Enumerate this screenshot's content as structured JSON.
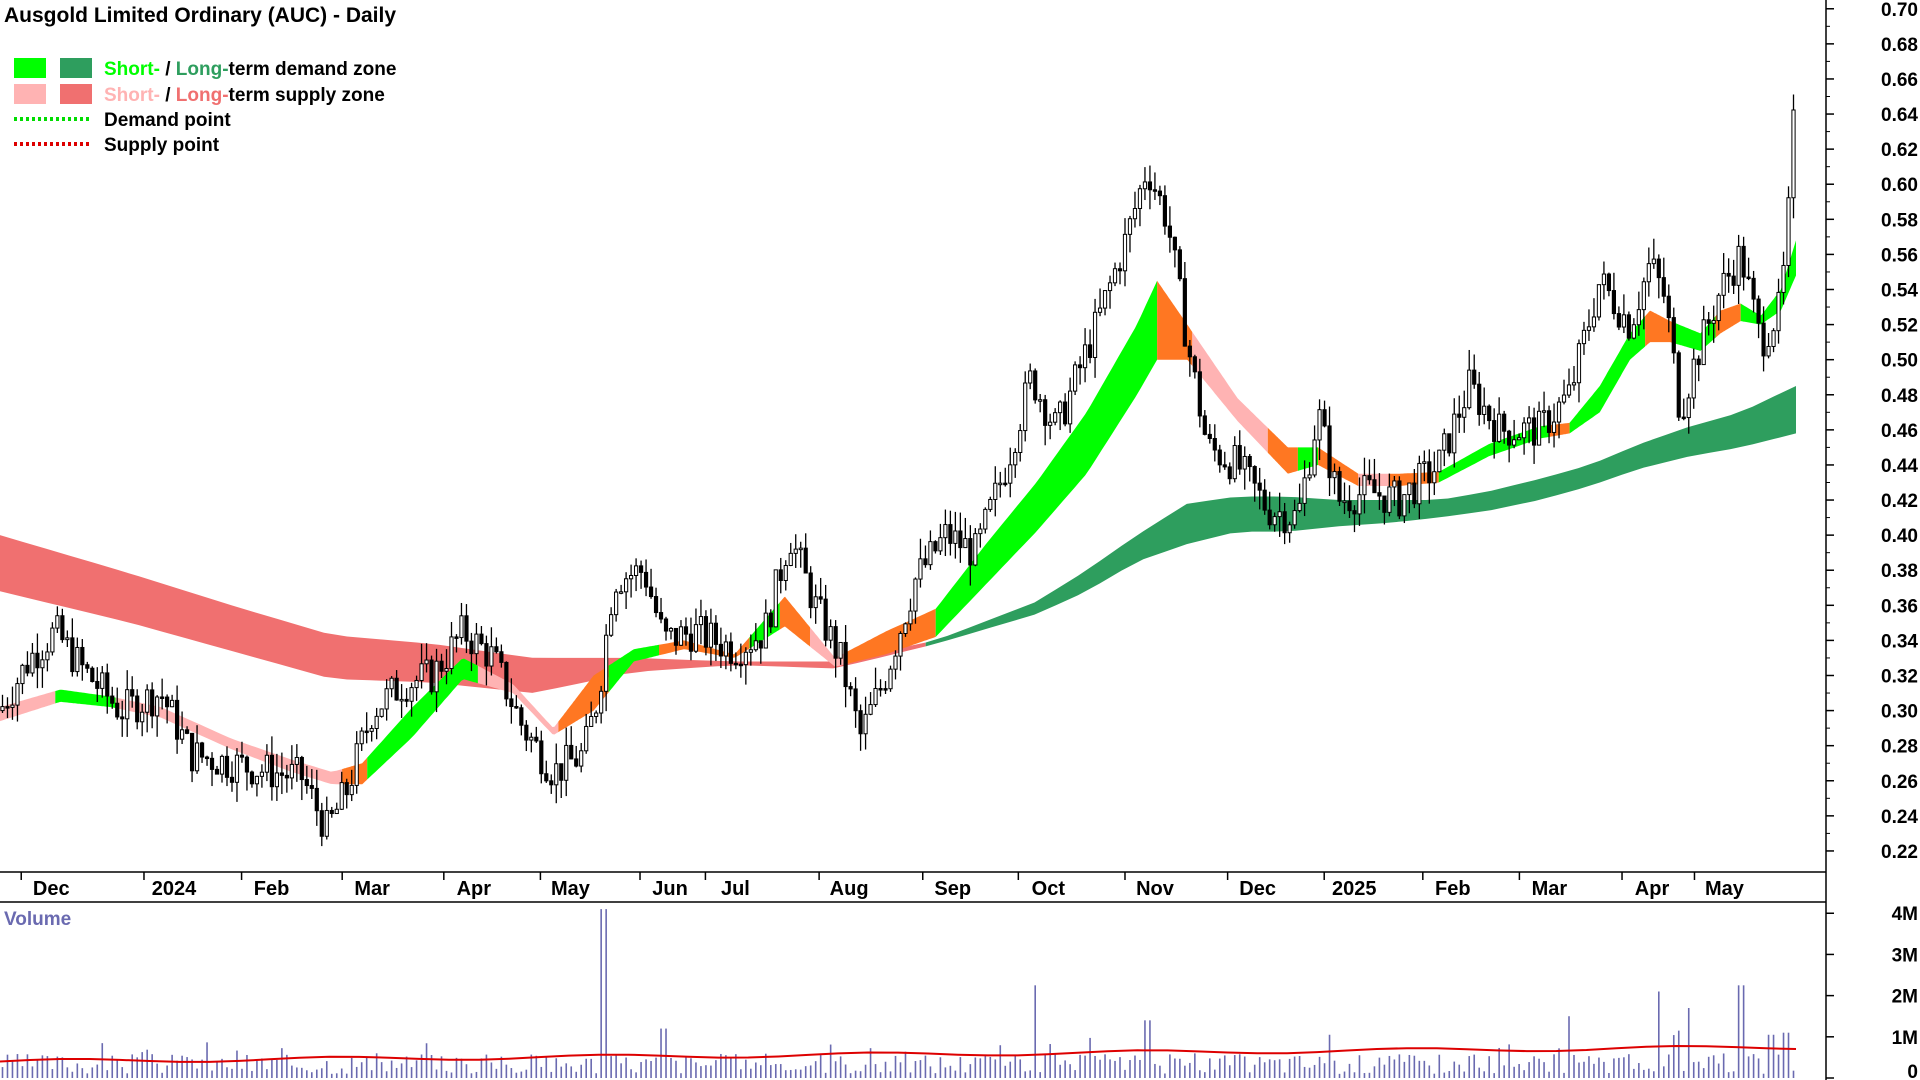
{
  "chart_data": {
    "type": "candlestick",
    "title": "Ausgold Limited Ordinary (AUC) - Daily",
    "y_ticks": [
      "0.70",
      "0.68",
      "0.66",
      "0.64",
      "0.62",
      "0.60",
      "0.58",
      "0.56",
      "0.54",
      "0.52",
      "0.50",
      "0.48",
      "0.46",
      "0.44",
      "0.42",
      "0.40",
      "0.38",
      "0.36",
      "0.34",
      "0.32",
      "0.30",
      "0.28",
      "0.26",
      "0.24",
      "0.22"
    ],
    "ylim": [
      0.208,
      0.705
    ],
    "month_labels": [
      "Dec",
      "2024",
      "Feb",
      "Mar",
      "Apr",
      "May",
      "Jun",
      "Jul",
      "Aug",
      "Sep",
      "Oct",
      "Nov",
      "Dec",
      "2025",
      "Feb",
      "Mar",
      "Apr",
      "May"
    ],
    "month_values": [
      0.07,
      1.29,
      2.26,
      3.26,
      4.27,
      5.23,
      6.22,
      6.87,
      8.0,
      9.03,
      9.98,
      11.04,
      12.06,
      13.02,
      14.0,
      14.96,
      15.98,
      16.7
    ],
    "x_range": [
      -0.3,
      17.55
    ],
    "legend": [
      {
        "short": "Short-",
        "sep": " / ",
        "long": "Long-",
        "rest": "term demand zone",
        "short_color": "#00ff00",
        "long_color": "#2e9e5e"
      },
      {
        "short": "Short-",
        "sep": " / ",
        "long": "Long-",
        "rest": "term supply zone",
        "short_color": "#ffb3b3",
        "long_color": "#f07070"
      },
      {
        "label": "Demand point",
        "color": "#00dd00"
      },
      {
        "label": "Supply point",
        "color": "#dd0000"
      }
    ],
    "price_path": [
      [
        -0.3,
        0.3
      ],
      [
        0.0,
        0.33
      ],
      [
        0.25,
        0.345
      ],
      [
        0.5,
        0.325
      ],
      [
        0.9,
        0.3
      ],
      [
        1.3,
        0.31
      ],
      [
        1.6,
        0.275
      ],
      [
        2.0,
        0.27
      ],
      [
        2.4,
        0.265
      ],
      [
        2.7,
        0.262
      ],
      [
        2.95,
        0.232
      ],
      [
        3.15,
        0.255
      ],
      [
        3.4,
        0.3
      ],
      [
        3.7,
        0.315
      ],
      [
        4.0,
        0.32
      ],
      [
        4.3,
        0.345
      ],
      [
        4.6,
        0.33
      ],
      [
        4.9,
        0.29
      ],
      [
        5.2,
        0.265
      ],
      [
        5.5,
        0.275
      ],
      [
        5.65,
        0.31
      ],
      [
        5.8,
        0.375
      ],
      [
        6.1,
        0.38
      ],
      [
        6.3,
        0.34
      ],
      [
        6.6,
        0.345
      ],
      [
        7.0,
        0.335
      ],
      [
        7.3,
        0.345
      ],
      [
        7.55,
        0.4
      ],
      [
        7.8,
        0.36
      ],
      [
        8.05,
        0.33
      ],
      [
        8.25,
        0.285
      ],
      [
        8.5,
        0.32
      ],
      [
        8.8,
        0.375
      ],
      [
        9.1,
        0.4
      ],
      [
        9.4,
        0.39
      ],
      [
        9.7,
        0.44
      ],
      [
        9.95,
        0.49
      ],
      [
        10.2,
        0.46
      ],
      [
        10.6,
        0.52
      ],
      [
        10.9,
        0.57
      ],
      [
        11.1,
        0.61
      ],
      [
        11.3,
        0.58
      ],
      [
        11.5,
        0.51
      ],
      [
        11.7,
        0.45
      ],
      [
        12.0,
        0.44
      ],
      [
        12.3,
        0.415
      ],
      [
        12.6,
        0.41
      ],
      [
        12.8,
        0.47
      ],
      [
        13.0,
        0.42
      ],
      [
        13.3,
        0.425
      ],
      [
        13.6,
        0.42
      ],
      [
        14.0,
        0.44
      ],
      [
        14.3,
        0.485
      ],
      [
        14.6,
        0.46
      ],
      [
        15.0,
        0.46
      ],
      [
        15.3,
        0.48
      ],
      [
        15.6,
        0.545
      ],
      [
        15.9,
        0.52
      ],
      [
        16.1,
        0.555
      ],
      [
        16.25,
        0.535
      ],
      [
        16.4,
        0.47
      ],
      [
        16.55,
        0.5
      ],
      [
        16.8,
        0.54
      ],
      [
        17.0,
        0.56
      ],
      [
        17.2,
        0.51
      ],
      [
        17.4,
        0.53
      ],
      [
        17.5,
        0.6
      ],
      [
        17.55,
        0.665
      ]
    ],
    "long_zone": {
      "x": [
        -0.3,
        1.0,
        2.0,
        3.0,
        4.0,
        5.0,
        6.0,
        7.0,
        8.0,
        9.0,
        10.0,
        10.5,
        11.0,
        11.5,
        12.0,
        12.5,
        13.0,
        13.5,
        14.0,
        14.5,
        15.0,
        15.5,
        16.0,
        16.5,
        17.0,
        17.55
      ],
      "upper": [
        0.4,
        0.378,
        0.36,
        0.343,
        0.338,
        0.33,
        0.33,
        0.328,
        0.328,
        0.34,
        0.362,
        0.38,
        0.4,
        0.418,
        0.422,
        0.422,
        0.42,
        0.42,
        0.42,
        0.425,
        0.432,
        0.44,
        0.452,
        0.462,
        0.47,
        0.485
      ],
      "lower": [
        0.368,
        0.35,
        0.334,
        0.318,
        0.316,
        0.31,
        0.322,
        0.326,
        0.324,
        0.338,
        0.355,
        0.368,
        0.385,
        0.395,
        0.402,
        0.402,
        0.405,
        0.407,
        0.41,
        0.414,
        0.42,
        0.428,
        0.438,
        0.445,
        0.45,
        0.458
      ]
    },
    "short_zone": {
      "x": [
        -0.3,
        0.3,
        0.8,
        1.3,
        2.0,
        2.6,
        3.0,
        3.3,
        3.8,
        4.3,
        4.8,
        5.2,
        5.6,
        6.0,
        6.5,
        7.0,
        7.5,
        8.0,
        8.5,
        9.0,
        9.5,
        10.0,
        10.5,
        11.0,
        11.2,
        11.5,
        12.0,
        12.5,
        12.8,
        13.2,
        13.6,
        14.0,
        14.5,
        15.0,
        15.3,
        15.6,
        15.9,
        16.1,
        16.3,
        16.6,
        16.8,
        17.0,
        17.2,
        17.4,
        17.55
      ],
      "upper": [
        0.302,
        0.312,
        0.308,
        0.302,
        0.284,
        0.272,
        0.265,
        0.27,
        0.302,
        0.33,
        0.315,
        0.29,
        0.32,
        0.335,
        0.34,
        0.332,
        0.365,
        0.33,
        0.345,
        0.358,
        0.395,
        0.43,
        0.47,
        0.52,
        0.545,
        0.52,
        0.478,
        0.45,
        0.45,
        0.435,
        0.435,
        0.436,
        0.452,
        0.462,
        0.464,
        0.485,
        0.515,
        0.528,
        0.522,
        0.515,
        0.528,
        0.532,
        0.525,
        0.54,
        0.568
      ],
      "lower": [
        0.294,
        0.305,
        0.302,
        0.296,
        0.278,
        0.265,
        0.258,
        0.258,
        0.285,
        0.318,
        0.31,
        0.286,
        0.3,
        0.328,
        0.335,
        0.33,
        0.348,
        0.325,
        0.332,
        0.342,
        0.372,
        0.402,
        0.435,
        0.48,
        0.5,
        0.5,
        0.465,
        0.435,
        0.44,
        0.428,
        0.428,
        0.43,
        0.445,
        0.455,
        0.458,
        0.47,
        0.5,
        0.51,
        0.51,
        0.505,
        0.515,
        0.522,
        0.52,
        0.528,
        0.548
      ]
    },
    "short_zone_segments": [
      {
        "from": -0.3,
        "to": 0.25,
        "kind": "short_supply"
      },
      {
        "from": 0.25,
        "to": 0.85,
        "kind": "short_demand"
      },
      {
        "from": 0.85,
        "to": 3.1,
        "kind": "short_supply"
      },
      {
        "from": 3.1,
        "to": 3.35,
        "kind": "overlap"
      },
      {
        "from": 3.35,
        "to": 4.45,
        "kind": "short_demand"
      },
      {
        "from": 4.45,
        "to": 5.25,
        "kind": "short_supply"
      },
      {
        "from": 5.25,
        "to": 5.75,
        "kind": "overlap"
      },
      {
        "from": 5.75,
        "to": 6.25,
        "kind": "short_demand"
      },
      {
        "from": 6.25,
        "to": 7.15,
        "kind": "overlap"
      },
      {
        "from": 7.15,
        "to": 7.45,
        "kind": "short_demand"
      },
      {
        "from": 7.45,
        "to": 7.75,
        "kind": "overlap"
      },
      {
        "from": 7.75,
        "to": 8.1,
        "kind": "short_supply"
      },
      {
        "from": 8.1,
        "to": 9.0,
        "kind": "overlap"
      },
      {
        "from": 9.0,
        "to": 11.2,
        "kind": "short_demand"
      },
      {
        "from": 11.2,
        "to": 11.55,
        "kind": "overlap"
      },
      {
        "from": 11.55,
        "to": 12.3,
        "kind": "short_supply"
      },
      {
        "from": 12.3,
        "to": 12.6,
        "kind": "overlap"
      },
      {
        "from": 12.6,
        "to": 12.8,
        "kind": "short_demand"
      },
      {
        "from": 12.8,
        "to": 13.2,
        "kind": "overlap"
      },
      {
        "from": 13.2,
        "to": 13.5,
        "kind": "short_supply"
      },
      {
        "from": 13.5,
        "to": 14.0,
        "kind": "overlap"
      },
      {
        "from": 14.0,
        "to": 15.1,
        "kind": "short_demand"
      },
      {
        "from": 15.1,
        "to": 15.3,
        "kind": "overlap"
      },
      {
        "from": 15.3,
        "to": 16.05,
        "kind": "short_demand"
      },
      {
        "from": 16.05,
        "to": 16.35,
        "kind": "overlap"
      },
      {
        "from": 16.35,
        "to": 16.75,
        "kind": "short_demand"
      },
      {
        "from": 16.75,
        "to": 17.0,
        "kind": "overlap"
      },
      {
        "from": 17.0,
        "to": 17.55,
        "kind": "short_demand"
      }
    ],
    "volume": {
      "label": "Volume",
      "y_ticks": [
        "4M",
        "3M",
        "2M",
        "1M",
        "0"
      ],
      "ylim": [
        0,
        4200000
      ],
      "spikes": [
        [
          5.7,
          4100000
        ],
        [
          6.3,
          1200000
        ],
        [
          10.0,
          2250000
        ],
        [
          11.1,
          1400000
        ],
        [
          12.9,
          1050000
        ],
        [
          15.3,
          1500000
        ],
        [
          16.2,
          2100000
        ],
        [
          16.4,
          1150000
        ],
        [
          16.5,
          1700000
        ],
        [
          17.0,
          2250000
        ],
        [
          17.3,
          1050000
        ],
        [
          17.45,
          1100000
        ]
      ],
      "avg_start": 400000,
      "avg_end": 750000
    },
    "colors": {
      "short_demand": "#00ff00",
      "long_demand": "#2e9e5e",
      "short_supply": "#ffb3b3",
      "long_supply": "#f07070",
      "overlap": "#ff7722",
      "candle": "#000000",
      "volume_bar": "#6a6ab0",
      "volume_avg": "#dd0000"
    }
  }
}
